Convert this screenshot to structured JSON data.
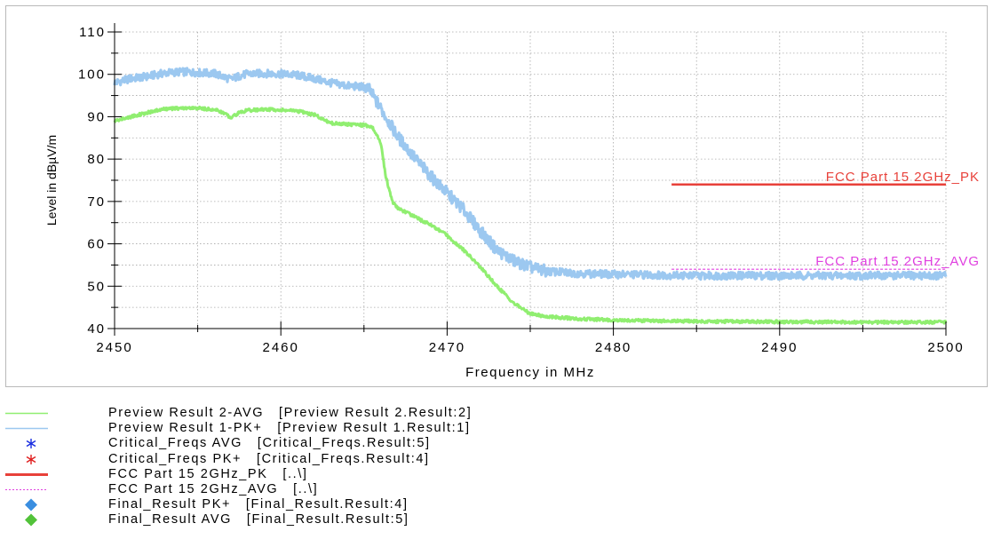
{
  "chart_data": {
    "type": "line",
    "xlabel": "Frequency in MHz",
    "ylabel": "Level in dBµV/m",
    "xlim": [
      2450,
      2500
    ],
    "ylim": [
      40,
      110
    ],
    "x_ticks": [
      "2450",
      "2460",
      "2470",
      "2480",
      "2490",
      "2500"
    ],
    "y_ticks": [
      "40",
      "50",
      "60",
      "70",
      "80",
      "90",
      "100",
      "110"
    ],
    "grid": "dotted",
    "series": [
      {
        "name": "Preview Result 1-PK+",
        "color": "#9cc8f0",
        "x": [
          2450,
          2451,
          2452,
          2453,
          2454,
          2455,
          2456,
          2456.5,
          2457,
          2457.5,
          2458,
          2459,
          2460,
          2461,
          2462,
          2463,
          2464,
          2465,
          2465.3,
          2466,
          2467,
          2468,
          2469,
          2470,
          2471,
          2472,
          2473,
          2474,
          2475,
          2476,
          2478,
          2480,
          2485,
          2490,
          2495,
          2500
        ],
        "y": [
          98,
          99,
          99.5,
          100.3,
          100.6,
          100.4,
          100.2,
          99.5,
          98.8,
          99.6,
          100.1,
          100.2,
          100.1,
          99.8,
          99,
          98,
          97.3,
          97,
          96.5,
          92,
          85.5,
          80.5,
          76,
          72,
          68,
          63,
          58.5,
          56,
          54.5,
          53.5,
          53,
          52.8,
          52.5,
          52.5,
          52.5,
          52.5
        ]
      },
      {
        "name": "Preview Result 2-AVG",
        "color": "#90ee70",
        "x": [
          2450,
          2451,
          2452,
          2453,
          2454,
          2455,
          2456,
          2456.5,
          2457,
          2457.5,
          2458,
          2459,
          2460,
          2461,
          2462,
          2463,
          2464,
          2465,
          2465.5,
          2466,
          2466.3,
          2466.7,
          2467,
          2468,
          2469,
          2470,
          2471,
          2472,
          2473,
          2474,
          2475,
          2476,
          2478,
          2480,
          2485,
          2490,
          2495,
          2500
        ],
        "y": [
          89,
          90,
          91,
          91.8,
          92,
          92,
          91.7,
          91,
          89.8,
          91,
          91.5,
          91.7,
          91.6,
          91.3,
          90.5,
          88.5,
          88.2,
          88,
          87.5,
          84,
          76,
          70,
          68.5,
          66.5,
          64.5,
          62,
          58.5,
          54.5,
          50,
          46,
          43.5,
          42.8,
          42.3,
          42,
          41.7,
          41.6,
          41.5,
          41.5
        ]
      }
    ],
    "limit_lines": [
      {
        "name": "FCC Part 15 2GHz_PK",
        "label": "FCC Part 15 2GHz_PK",
        "x": [
          2483.5,
          2500
        ],
        "y": [
          74,
          74
        ],
        "color": "#e8413a",
        "style": "solid"
      },
      {
        "name": "FCC Part 15 2GHz_AVG",
        "label": "FCC Part 15 2GHz_AVG",
        "x": [
          2483.5,
          2500
        ],
        "y": [
          54,
          54
        ],
        "color": "#e040e0",
        "style": "dashed"
      }
    ]
  },
  "legend": {
    "items": [
      {
        "text": "Preview Result 2-AVG   [Preview Result 2.Result:2]",
        "symbol": "line",
        "color": "#90ee70"
      },
      {
        "text": "Preview Result 1-PK+   [Preview Result 1.Result:1]",
        "symbol": "line",
        "color": "#9cc8f0"
      },
      {
        "text": "Critical_Freqs AVG   [Critical_Freqs.Result:5]",
        "symbol": "asterisk",
        "color": "#1a2ee0"
      },
      {
        "text": "Critical_Freqs PK+   [Critical_Freqs.Result:4]",
        "symbol": "asterisk",
        "color": "#e02020"
      },
      {
        "text": "FCC Part 15 2GHz_PK   [..\\]",
        "symbol": "thick-line",
        "color": "#e8413a"
      },
      {
        "text": "FCC Part 15 2GHz_AVG   [..\\]",
        "symbol": "dash-line",
        "color": "#e040e0"
      },
      {
        "text": "Final_Result PK+   [Final_Result.Result:4]",
        "symbol": "diamond",
        "color": "#3a8ee0"
      },
      {
        "text": "Final_Result AVG   [Final_Result.Result:5]",
        "symbol": "diamond",
        "color": "#52c23a"
      }
    ]
  }
}
